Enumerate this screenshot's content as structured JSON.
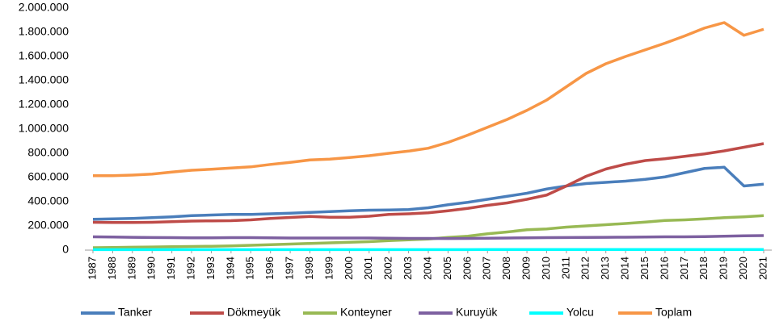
{
  "chart_data": {
    "type": "line",
    "categories": [
      "1987",
      "1988",
      "1989",
      "1990",
      "1991",
      "1992",
      "1993",
      "1994",
      "1995",
      "1996",
      "1997",
      "1998",
      "1999",
      "2000",
      "2001",
      "2002",
      "2003",
      "2004",
      "2005",
      "2006",
      "2007",
      "2008",
      "2009",
      "2010",
      "2011",
      "2012",
      "2013",
      "2014",
      "2015",
      "2016",
      "2017",
      "2018",
      "2019",
      "2020",
      "2021"
    ],
    "series": [
      {
        "name": "Tanker",
        "color": "#4a7ebb",
        "values": [
          255000,
          258000,
          262000,
          268000,
          275000,
          285000,
          290000,
          295000,
          295000,
          300000,
          305000,
          312000,
          318000,
          325000,
          330000,
          332000,
          335000,
          350000,
          375000,
          395000,
          420000,
          445000,
          470000,
          505000,
          530000,
          550000,
          560000,
          570000,
          585000,
          605000,
          640000,
          675000,
          685000,
          530000,
          545000
        ]
      },
      {
        "name": "Dökmeyük",
        "color": "#be4b48",
        "values": [
          230000,
          228000,
          228000,
          230000,
          235000,
          240000,
          242000,
          243000,
          250000,
          262000,
          270000,
          278000,
          272000,
          272000,
          280000,
          295000,
          300000,
          308000,
          325000,
          345000,
          370000,
          390000,
          420000,
          455000,
          530000,
          610000,
          670000,
          710000,
          740000,
          755000,
          775000,
          795000,
          820000,
          850000,
          880000
        ]
      },
      {
        "name": "Konteyner",
        "color": "#98b954",
        "values": [
          20000,
          22000,
          24000,
          26000,
          28000,
          30000,
          32000,
          35000,
          40000,
          45000,
          50000,
          55000,
          60000,
          65000,
          70000,
          78000,
          85000,
          92000,
          105000,
          115000,
          135000,
          150000,
          168000,
          175000,
          190000,
          200000,
          210000,
          220000,
          232000,
          245000,
          250000,
          258000,
          268000,
          275000,
          285000
        ]
      },
      {
        "name": "Kuruyük",
        "color": "#7d60a0",
        "values": [
          110000,
          108000,
          106000,
          104000,
          103000,
          102000,
          102000,
          103000,
          103000,
          102000,
          100000,
          100000,
          100000,
          100000,
          100000,
          98000,
          97000,
          97000,
          96000,
          97000,
          98000,
          100000,
          102000,
          103000,
          104000,
          105000,
          106000,
          107000,
          108000,
          110000,
          110000,
          112000,
          115000,
          118000,
          120000
        ]
      },
      {
        "name": "Yolcu",
        "color": "#00ffff",
        "values": [
          4000,
          4000,
          4000,
          4000,
          4000,
          4000,
          4000,
          4000,
          4000,
          4000,
          4000,
          4000,
          4000,
          4000,
          4000,
          4000,
          4000,
          4000,
          4000,
          4000,
          5000,
          5000,
          5000,
          5000,
          5000,
          5000,
          5000,
          5000,
          5000,
          5000,
          5000,
          5000,
          5000,
          5000,
          5000
        ]
      },
      {
        "name": "Toplam",
        "color": "#f79646",
        "values": [
          615000,
          615000,
          620000,
          628000,
          645000,
          660000,
          668000,
          678000,
          688000,
          708000,
          725000,
          745000,
          752000,
          765000,
          780000,
          800000,
          818000,
          842000,
          890000,
          950000,
          1015000,
          1080000,
          1155000,
          1240000,
          1350000,
          1460000,
          1540000,
          1600000,
          1655000,
          1710000,
          1770000,
          1835000,
          1880000,
          1775000,
          1825000
        ]
      }
    ],
    "ylim": [
      0,
      2000000
    ],
    "yticks": [
      0,
      {
        "value": 200000,
        "label": "200.000"
      },
      {
        "value": 400000,
        "label": "400.000"
      },
      {
        "value": 600000,
        "label": "600.000"
      },
      {
        "value": 800000,
        "label": "800.000"
      },
      {
        "value": 1000000,
        "label": "1.000.000"
      },
      {
        "value": 1200000,
        "label": "1.200.000"
      },
      {
        "value": 1400000,
        "label": "1.400.000"
      },
      {
        "value": 1600000,
        "label": "1.600.000"
      },
      {
        "value": 1800000,
        "label": "1.800.000"
      },
      {
        "value": 2000000,
        "label": "2.000.000"
      }
    ],
    "grid": false,
    "legend": "bottom"
  }
}
